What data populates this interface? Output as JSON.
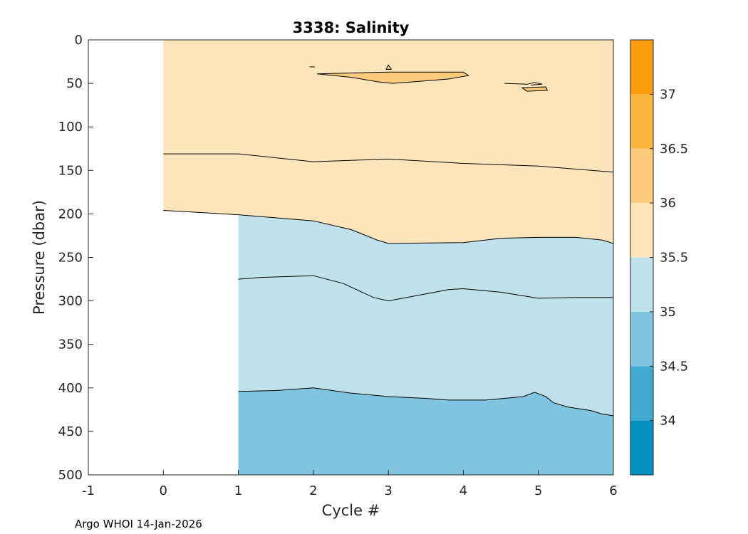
{
  "chart_data": {
    "type": "contourf",
    "title": "3338:  Salinity",
    "xlabel": "Cycle #",
    "ylabel": "Pressure (dbar)",
    "xlim": [
      -1,
      6
    ],
    "ylim": [
      0,
      500
    ],
    "y_reversed": true,
    "xticks": [
      -1,
      0,
      1,
      2,
      3,
      4,
      5,
      6
    ],
    "yticks": [
      0,
      50,
      100,
      150,
      200,
      250,
      300,
      350,
      400,
      450,
      500
    ],
    "colorbar": {
      "range": [
        33.5,
        37.5
      ],
      "ticks": [
        34,
        34.5,
        35,
        35.5,
        36,
        36.5,
        37
      ],
      "bands": [
        {
          "from": 33.5,
          "to": 34.0,
          "color": "#0490bf"
        },
        {
          "from": 34.0,
          "to": 34.5,
          "color": "#42a9d0"
        },
        {
          "from": 34.5,
          "to": 35.0,
          "color": "#81c4df"
        },
        {
          "from": 35.0,
          "to": 35.5,
          "color": "#c0e1ec"
        },
        {
          "from": 35.5,
          "to": 36.0,
          "color": "#fde5bb"
        },
        {
          "from": 36.0,
          "to": 36.5,
          "color": "#fccb7b"
        },
        {
          "from": 36.5,
          "to": 37.0,
          "color": "#fbb33f"
        },
        {
          "from": 37.0,
          "to": 37.5,
          "color": "#fa9c0d"
        }
      ]
    },
    "contour_lines": [
      {
        "level": 35.5,
        "segment": "upper-left",
        "points": [
          [
            0,
            131
          ],
          [
            1,
            131
          ],
          [
            2,
            140
          ],
          [
            3,
            137
          ],
          [
            4,
            142
          ],
          [
            5,
            145
          ],
          [
            6,
            152
          ]
        ]
      },
      {
        "level": 35.5,
        "segment": "main",
        "points": [
          [
            0,
            196
          ],
          [
            1,
            201
          ],
          [
            2,
            208
          ],
          [
            2.5,
            218
          ],
          [
            2.85,
            230
          ],
          [
            3,
            234
          ],
          [
            4,
            233
          ],
          [
            4.5,
            228
          ],
          [
            5,
            227
          ],
          [
            5.5,
            227
          ],
          [
            5.85,
            230
          ],
          [
            6,
            234
          ]
        ]
      },
      {
        "level": 35.0,
        "points": [
          [
            1,
            275
          ],
          [
            1.3,
            273
          ],
          [
            2,
            271
          ],
          [
            2.4,
            280
          ],
          [
            2.8,
            296
          ],
          [
            3,
            300
          ],
          [
            3.5,
            292
          ],
          [
            3.8,
            287
          ],
          [
            4,
            286
          ],
          [
            4.5,
            290
          ],
          [
            5,
            297
          ],
          [
            5.5,
            296
          ],
          [
            6,
            296
          ]
        ]
      },
      {
        "level": 34.5,
        "points": [
          [
            1,
            404
          ],
          [
            1.5,
            403
          ],
          [
            2,
            400
          ],
          [
            2.5,
            406
          ],
          [
            3,
            410
          ],
          [
            3.5,
            412
          ],
          [
            3.8,
            414
          ],
          [
            4.3,
            414
          ],
          [
            4.8,
            410
          ],
          [
            4.95,
            405
          ],
          [
            5.1,
            410
          ],
          [
            5.2,
            417
          ],
          [
            5.4,
            422
          ],
          [
            5.7,
            426
          ],
          [
            5.85,
            430
          ],
          [
            6,
            432
          ]
        ]
      },
      {
        "level": 36.0,
        "segment": "patch",
        "closed": true,
        "points": [
          [
            2.05,
            39
          ],
          [
            3,
            37
          ],
          [
            4,
            37
          ],
          [
            4.07,
            41
          ],
          [
            3.8,
            45
          ],
          [
            3.35,
            48
          ],
          [
            3.05,
            50
          ],
          [
            2.85,
            48
          ],
          [
            2.5,
            43
          ]
        ]
      },
      {
        "level": 36.0,
        "segment": "patch-small",
        "closed": true,
        "points": [
          [
            4.78,
            55
          ],
          [
            5.1,
            54
          ],
          [
            5.12,
            58
          ],
          [
            4.85,
            59
          ]
        ]
      },
      {
        "level": 36.0,
        "segment": "fleck-a",
        "points": [
          [
            1.95,
            31
          ],
          [
            2.02,
            31
          ]
        ]
      },
      {
        "level": 36.0,
        "segment": "fleck-b",
        "points": [
          [
            4.55,
            50
          ],
          [
            4.85,
            51
          ],
          [
            4.95,
            49
          ],
          [
            5.05,
            51
          ],
          [
            4.9,
            52
          ]
        ]
      },
      {
        "level": 36.0,
        "segment": "fleck-c",
        "closed": true,
        "points": [
          [
            2.97,
            34
          ],
          [
            3.0,
            29
          ],
          [
            3.04,
            34
          ]
        ]
      }
    ],
    "data_extent": {
      "cycle_0_max_pressure": 200,
      "cycles": [
        0,
        1,
        2,
        3,
        4,
        5,
        6
      ]
    }
  },
  "footer": "Argo WHOI 14-Jan-2026"
}
